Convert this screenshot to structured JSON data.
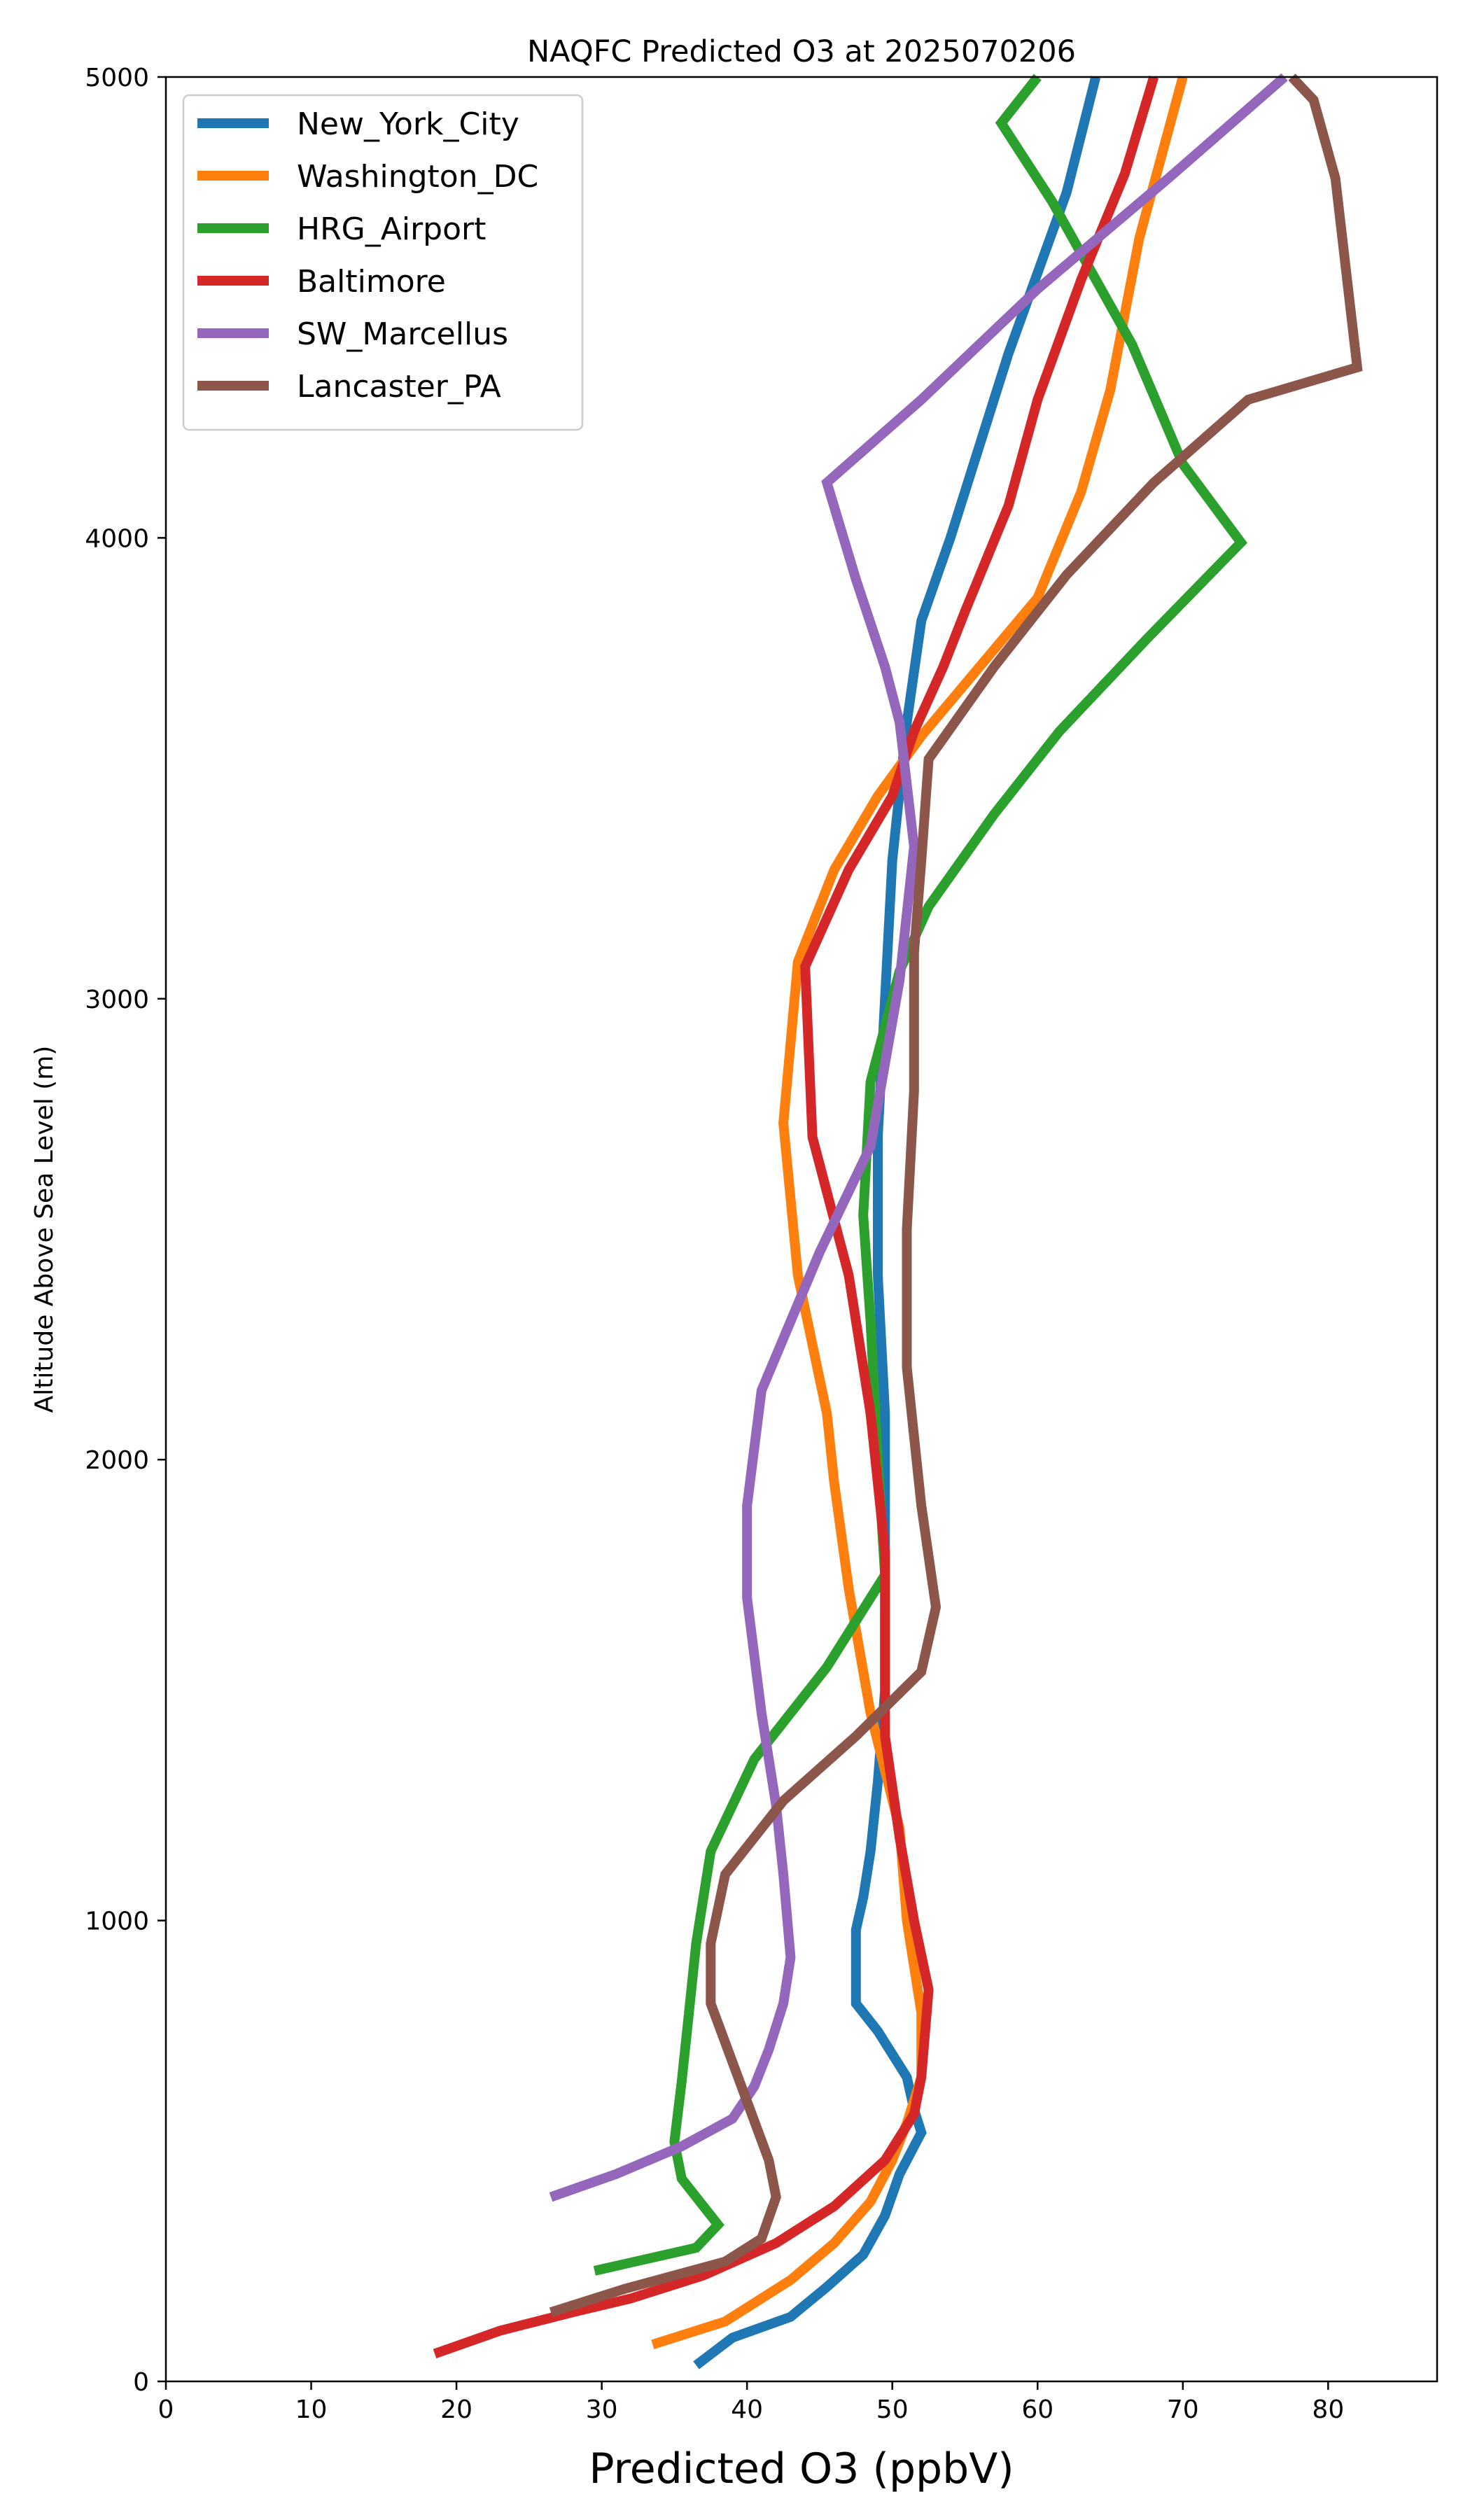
{
  "chart_data": {
    "type": "line",
    "title": "NAQFC Predicted O3 at 2025070206",
    "xlabel": "Predicted O3 (ppbV)",
    "ylabel": "Altitude Above Sea Level (m)",
    "xlim": [
      0,
      87.5
    ],
    "ylim": [
      0,
      5000
    ],
    "xticks": [
      0,
      10,
      20,
      30,
      40,
      50,
      60,
      70,
      80
    ],
    "yticks": [
      0,
      1000,
      2000,
      3000,
      4000,
      5000
    ],
    "grid": false,
    "legend_position": "upper-left",
    "series": [
      {
        "name": "New_York_City",
        "color": "#1f77b4",
        "points": [
          [
            36.5,
            35
          ],
          [
            39,
            95
          ],
          [
            43,
            140
          ],
          [
            45.5,
            205
          ],
          [
            48,
            275
          ],
          [
            49.5,
            360
          ],
          [
            50.5,
            450
          ],
          [
            52,
            540
          ],
          [
            51.5,
            590
          ],
          [
            51,
            660
          ],
          [
            49,
            760
          ],
          [
            47.5,
            820
          ],
          [
            47.5,
            980
          ],
          [
            48,
            1050
          ],
          [
            48.5,
            1150
          ],
          [
            49,
            1300
          ],
          [
            49.5,
            1500
          ],
          [
            49.5,
            1800
          ],
          [
            49.5,
            2100
          ],
          [
            49,
            2400
          ],
          [
            49,
            2700
          ],
          [
            49.5,
            3000
          ],
          [
            50,
            3300
          ],
          [
            50.5,
            3450
          ],
          [
            51,
            3600
          ],
          [
            52,
            3820
          ],
          [
            54,
            4000
          ],
          [
            58,
            4400
          ],
          [
            62,
            4750
          ],
          [
            64,
            5000
          ]
        ]
      },
      {
        "name": "Washington_DC",
        "color": "#ff7f0e",
        "points": [
          [
            33.5,
            80
          ],
          [
            38.5,
            130
          ],
          [
            43,
            220
          ],
          [
            46,
            300
          ],
          [
            48.5,
            390
          ],
          [
            50,
            480
          ],
          [
            51,
            560
          ],
          [
            52,
            660
          ],
          [
            52,
            800
          ],
          [
            51,
            1000
          ],
          [
            50.5,
            1200
          ],
          [
            48.5,
            1450
          ],
          [
            47,
            1720
          ],
          [
            46,
            1950
          ],
          [
            45.5,
            2100
          ],
          [
            43.5,
            2400
          ],
          [
            42.5,
            2730
          ],
          [
            43.5,
            3080
          ],
          [
            46,
            3280
          ],
          [
            49,
            3440
          ],
          [
            52,
            3570
          ],
          [
            56,
            3720
          ],
          [
            60,
            3870
          ],
          [
            63,
            4100
          ],
          [
            65,
            4320
          ],
          [
            67,
            4650
          ],
          [
            70,
            5000
          ]
        ]
      },
      {
        "name": "HRG_Airport",
        "color": "#2ca02c",
        "points": [
          [
            29.5,
            240
          ],
          [
            36.5,
            290
          ],
          [
            38,
            340
          ],
          [
            37,
            380
          ],
          [
            35.5,
            440
          ],
          [
            35,
            520
          ],
          [
            35.5,
            650
          ],
          [
            36,
            800
          ],
          [
            36.5,
            950
          ],
          [
            37.5,
            1150
          ],
          [
            40.5,
            1350
          ],
          [
            45.5,
            1550
          ],
          [
            49.5,
            1750
          ],
          [
            49,
            2000
          ],
          [
            48.5,
            2300
          ],
          [
            48,
            2530
          ],
          [
            48.5,
            2820
          ],
          [
            50.5,
            3060
          ],
          [
            52.5,
            3200
          ],
          [
            57,
            3400
          ],
          [
            61.5,
            3580
          ],
          [
            67.5,
            3780
          ],
          [
            74,
            3990
          ],
          [
            70,
            4160
          ],
          [
            66.5,
            4420
          ],
          [
            61,
            4730
          ],
          [
            57.5,
            4900
          ],
          [
            60,
            5000
          ]
        ]
      },
      {
        "name": "Baltimore",
        "color": "#d62728",
        "points": [
          [
            18.5,
            60
          ],
          [
            23,
            110
          ],
          [
            28,
            150
          ],
          [
            32,
            180
          ],
          [
            37,
            230
          ],
          [
            42,
            300
          ],
          [
            46,
            380
          ],
          [
            49.5,
            480
          ],
          [
            51.5,
            580
          ],
          [
            52,
            660
          ],
          [
            52.5,
            850
          ],
          [
            51.5,
            1000
          ],
          [
            50.5,
            1180
          ],
          [
            49.5,
            1400
          ],
          [
            49.5,
            1600
          ],
          [
            49.5,
            1800
          ],
          [
            48.5,
            2100
          ],
          [
            47,
            2400
          ],
          [
            44.5,
            2700
          ],
          [
            44,
            3070
          ],
          [
            47,
            3280
          ],
          [
            50,
            3440
          ],
          [
            51.5,
            3580
          ],
          [
            53.5,
            3720
          ],
          [
            55,
            3840
          ],
          [
            58,
            4070
          ],
          [
            60,
            4300
          ],
          [
            63,
            4560
          ],
          [
            66,
            4790
          ],
          [
            68,
            5000
          ]
        ]
      },
      {
        "name": "SW_Marcellus",
        "color": "#9467bd",
        "points": [
          [
            26.5,
            400
          ],
          [
            31,
            450
          ],
          [
            35.5,
            510
          ],
          [
            39,
            570
          ],
          [
            40.5,
            640
          ],
          [
            41.5,
            720
          ],
          [
            42.5,
            820
          ],
          [
            43,
            920
          ],
          [
            42.5,
            1100
          ],
          [
            42,
            1250
          ],
          [
            41,
            1450
          ],
          [
            40,
            1700
          ],
          [
            40,
            1900
          ],
          [
            41,
            2150
          ],
          [
            45,
            2450
          ],
          [
            48.5,
            2680
          ],
          [
            50.5,
            3040
          ],
          [
            51.5,
            3330
          ],
          [
            50.5,
            3600
          ],
          [
            49.5,
            3720
          ],
          [
            47.5,
            3910
          ],
          [
            45.5,
            4120
          ],
          [
            52,
            4300
          ],
          [
            60,
            4540
          ],
          [
            69,
            4780
          ],
          [
            77,
            5000
          ]
        ]
      },
      {
        "name": "Lancaster_PA",
        "color": "#8c564b",
        "points": [
          [
            26.5,
            150
          ],
          [
            31.5,
            200
          ],
          [
            38.5,
            260
          ],
          [
            41,
            310
          ],
          [
            42,
            400
          ],
          [
            41.5,
            480
          ],
          [
            39.5,
            650
          ],
          [
            37.5,
            820
          ],
          [
            37.5,
            950
          ],
          [
            38.5,
            1100
          ],
          [
            42.5,
            1260
          ],
          [
            47.5,
            1400
          ],
          [
            52,
            1540
          ],
          [
            53,
            1680
          ],
          [
            52,
            1900
          ],
          [
            51.5,
            2050
          ],
          [
            51,
            2200
          ],
          [
            51,
            2500
          ],
          [
            51.5,
            2800
          ],
          [
            51.5,
            3100
          ],
          [
            52,
            3300
          ],
          [
            52.5,
            3520
          ],
          [
            57,
            3720
          ],
          [
            62,
            3920
          ],
          [
            68,
            4120
          ],
          [
            74.5,
            4300
          ],
          [
            82,
            4370
          ],
          [
            80.5,
            4780
          ],
          [
            79,
            4950
          ],
          [
            77.5,
            5000
          ]
        ]
      }
    ]
  }
}
